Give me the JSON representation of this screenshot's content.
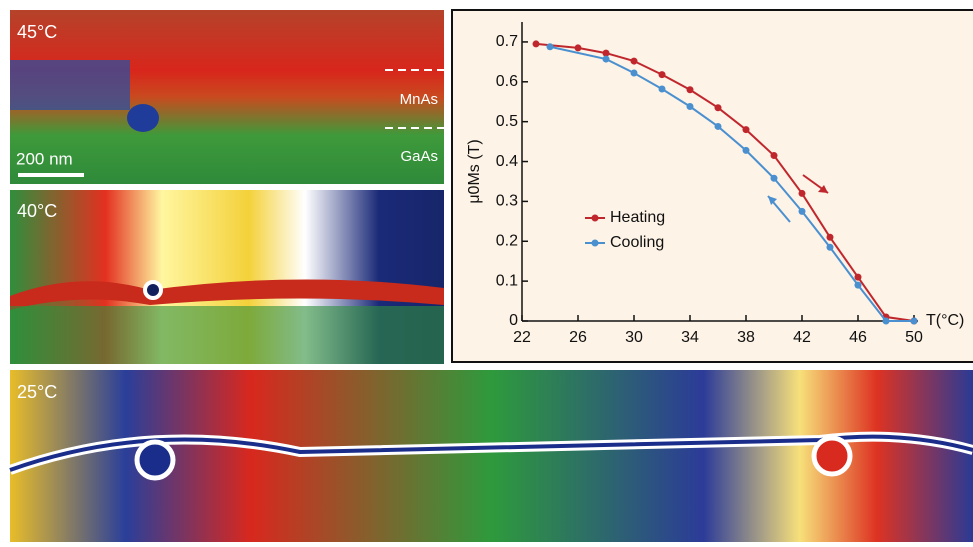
{
  "chart_data": {
    "type": "line",
    "x_label": "T(°C)",
    "y_label": "μ0Ms (T)",
    "xlim": [
      22,
      50
    ],
    "ylim": [
      0,
      0.75
    ],
    "xticks": [
      22,
      26,
      30,
      34,
      38,
      42,
      46,
      50
    ],
    "yticks": [
      0,
      0.1,
      0.2,
      0.3,
      0.4,
      0.5,
      0.6,
      0.7
    ],
    "series": [
      {
        "name": "Heating",
        "color": "#c0272d",
        "x": [
          23,
          26,
          28,
          30,
          32,
          34,
          36,
          38,
          40,
          42,
          44,
          46,
          48,
          50
        ],
        "values": [
          0.695,
          0.685,
          0.672,
          0.652,
          0.618,
          0.58,
          0.535,
          0.48,
          0.415,
          0.32,
          0.21,
          0.11,
          0.01,
          0
        ]
      },
      {
        "name": "Cooling",
        "color": "#4a90d0",
        "x": [
          24,
          28,
          30,
          32,
          34,
          36,
          38,
          40,
          42,
          44,
          46,
          48,
          50
        ],
        "values": [
          0.688,
          0.657,
          0.622,
          0.582,
          0.538,
          0.488,
          0.428,
          0.358,
          0.275,
          0.185,
          0.09,
          0,
          0
        ]
      }
    ]
  },
  "image_labels": {
    "panel_1": "45°C",
    "mnas": "MnAs",
    "gaas": "GaAs",
    "scale_bar": "200 nm",
    "panel_2": "40°C",
    "panel_3": "25°C"
  }
}
